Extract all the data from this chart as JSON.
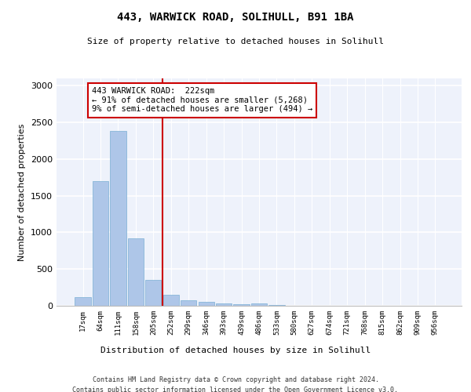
{
  "title1": "443, WARWICK ROAD, SOLIHULL, B91 1BA",
  "title2": "Size of property relative to detached houses in Solihull",
  "xlabel": "Distribution of detached houses by size in Solihull",
  "ylabel": "Number of detached properties",
  "categories": [
    "17sqm",
    "64sqm",
    "111sqm",
    "158sqm",
    "205sqm",
    "252sqm",
    "299sqm",
    "346sqm",
    "393sqm",
    "439sqm",
    "486sqm",
    "533sqm",
    "580sqm",
    "627sqm",
    "674sqm",
    "721sqm",
    "768sqm",
    "815sqm",
    "862sqm",
    "909sqm",
    "956sqm"
  ],
  "values": [
    120,
    1700,
    2380,
    920,
    355,
    150,
    75,
    50,
    28,
    25,
    30,
    10,
    5,
    0,
    0,
    0,
    0,
    0,
    0,
    0,
    0
  ],
  "bar_color": "#aec6e8",
  "bar_edge_color": "#7aafd4",
  "annotation_text": "443 WARWICK ROAD:  222sqm\n← 91% of detached houses are smaller (5,268)\n9% of semi-detached houses are larger (494) →",
  "annotation_box_color": "#cc0000",
  "background_color": "#eef2fb",
  "ylim": [
    0,
    3100
  ],
  "yticks": [
    0,
    500,
    1000,
    1500,
    2000,
    2500,
    3000
  ],
  "footer1": "Contains HM Land Registry data © Crown copyright and database right 2024.",
  "footer2": "Contains public sector information licensed under the Open Government Licence v3.0."
}
